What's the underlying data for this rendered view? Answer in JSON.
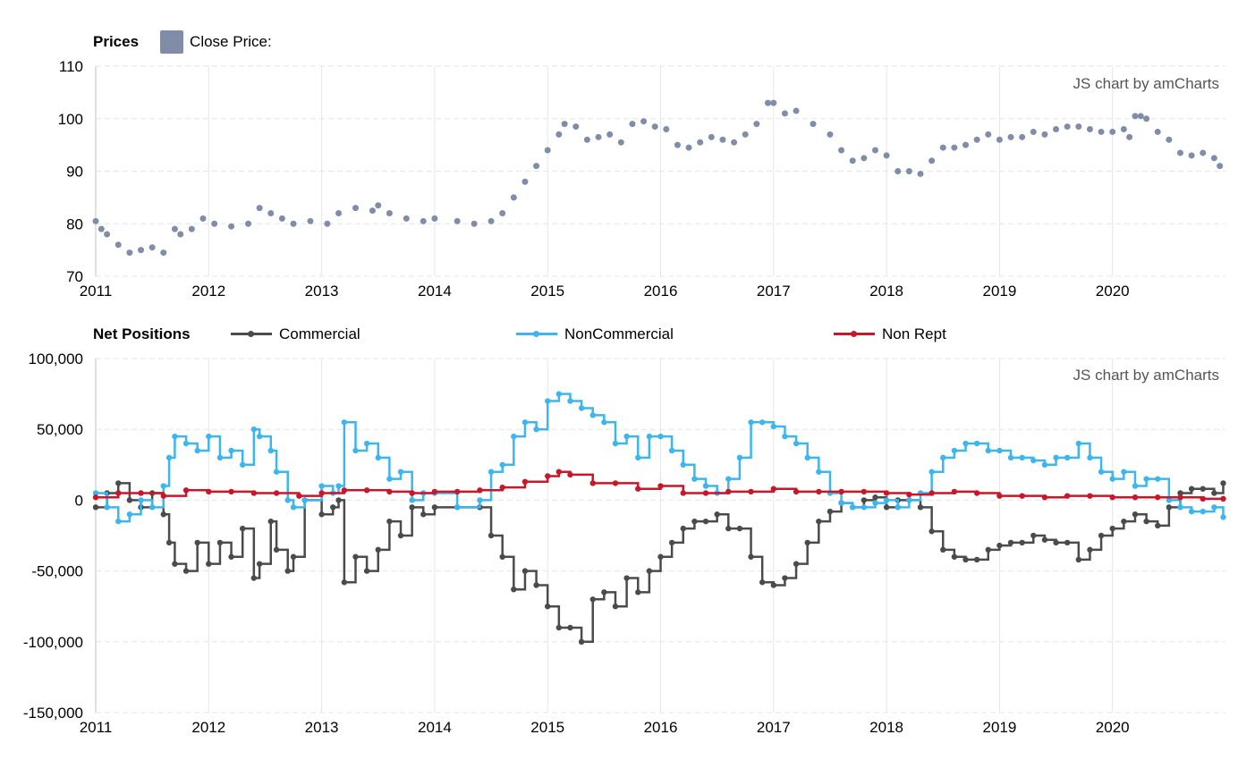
{
  "watermark": "JS chart by amCharts",
  "colors": {
    "close": "#7f8da9",
    "close_alt": "#e05a57",
    "commercial": "#4b4b4b",
    "noncommercial": "#3cb6ee",
    "nonrept": "#c8172a",
    "grid": "#e6e6e6"
  },
  "prices_legend": {
    "title": "Prices",
    "item": "Close Price:"
  },
  "positions_legend": {
    "title": "Net Positions",
    "items": [
      {
        "label": "Commercial",
        "color_key": "commercial"
      },
      {
        "label": "NonCommercial",
        "color_key": "noncommercial"
      },
      {
        "label": "Non Rept",
        "color_key": "nonrept"
      }
    ]
  },
  "chart_data": [
    {
      "type": "scatter",
      "title": "Prices",
      "series": [
        {
          "name": "Close Price:",
          "x": [
            2011.0,
            2011.05,
            2011.1,
            2011.2,
            2011.3,
            2011.4,
            2011.5,
            2011.6,
            2011.7,
            2011.75,
            2011.85,
            2011.95,
            2012.05,
            2012.2,
            2012.35,
            2012.45,
            2012.55,
            2012.65,
            2012.75,
            2012.9,
            2013.05,
            2013.15,
            2013.3,
            2013.45,
            2013.5,
            2013.6,
            2013.75,
            2013.9,
            2014.0,
            2014.2,
            2014.35,
            2014.5,
            2014.6,
            2014.7,
            2014.8,
            2014.9,
            2015.0,
            2015.1,
            2015.15,
            2015.25,
            2015.35,
            2015.45,
            2015.55,
            2015.65,
            2015.75,
            2015.85,
            2015.95,
            2016.05,
            2016.15,
            2016.25,
            2016.35,
            2016.45,
            2016.55,
            2016.65,
            2016.75,
            2016.85,
            2016.95,
            2017.0,
            2017.1,
            2017.2,
            2017.35,
            2017.5,
            2017.6,
            2017.7,
            2017.8,
            2017.9,
            2018.0,
            2018.1,
            2018.2,
            2018.3,
            2018.4,
            2018.5,
            2018.6,
            2018.7,
            2018.8,
            2018.9,
            2019.0,
            2019.1,
            2019.2,
            2019.3,
            2019.4,
            2019.5,
            2019.6,
            2019.7,
            2019.8,
            2019.9,
            2020.0,
            2020.1,
            2020.15,
            2020.2,
            2020.25,
            2020.3,
            2020.4,
            2020.5,
            2020.6,
            2020.7,
            2020.8,
            2020.9,
            2020.95
          ],
          "y": [
            80.5,
            79,
            78,
            76,
            74.5,
            75,
            75.5,
            74.5,
            79,
            78,
            79,
            81,
            80,
            79.5,
            80,
            83,
            82,
            81,
            80,
            80.5,
            80,
            82,
            83,
            82.5,
            83.5,
            82,
            81,
            80.5,
            81,
            80.5,
            80,
            80.5,
            82,
            85,
            88,
            91,
            94,
            97,
            99,
            98.5,
            96,
            96.5,
            97,
            95.5,
            99,
            99.5,
            98.5,
            98,
            95,
            94.5,
            95.5,
            96.5,
            96,
            95.5,
            97,
            99,
            103,
            103,
            101,
            101.5,
            99,
            97,
            94,
            92,
            92.5,
            94,
            93,
            90,
            90,
            89.5,
            92,
            94.5,
            94.5,
            95,
            96,
            97,
            96,
            96.5,
            96.5,
            97.5,
            97,
            98,
            98.5,
            98.5,
            98,
            97.5,
            97.5,
            98,
            96.5,
            100.5,
            100.5,
            100,
            97.5,
            96,
            93.5,
            93,
            93.5,
            92.5,
            91
          ]
        }
      ],
      "xlim": [
        2011,
        2021
      ],
      "ylim": [
        70,
        110
      ],
      "x_ticks": [
        "2011",
        "2012",
        "2013",
        "2014",
        "2015",
        "2016",
        "2017",
        "2018",
        "2019",
        "2020"
      ],
      "y_ticks": [
        "70",
        "80",
        "90",
        "100",
        "110"
      ],
      "legend": "top-left",
      "grid": true
    },
    {
      "type": "line",
      "title": "Net Positions",
      "series": [
        {
          "name": "Commercial",
          "x": [
            2011.0,
            2011.1,
            2011.2,
            2011.3,
            2011.4,
            2011.5,
            2011.6,
            2011.65,
            2011.7,
            2011.8,
            2011.9,
            2012.0,
            2012.1,
            2012.2,
            2012.3,
            2012.4,
            2012.45,
            2012.55,
            2012.6,
            2012.7,
            2012.75,
            2012.85,
            2013.0,
            2013.1,
            2013.15,
            2013.2,
            2013.3,
            2013.4,
            2013.5,
            2013.6,
            2013.7,
            2013.8,
            2013.9,
            2014.0,
            2014.2,
            2014.4,
            2014.5,
            2014.6,
            2014.7,
            2014.8,
            2014.9,
            2015.0,
            2015.1,
            2015.2,
            2015.3,
            2015.4,
            2015.5,
            2015.6,
            2015.7,
            2015.8,
            2015.9,
            2016.0,
            2016.1,
            2016.2,
            2016.3,
            2016.4,
            2016.5,
            2016.6,
            2016.7,
            2016.8,
            2016.9,
            2017.0,
            2017.1,
            2017.2,
            2017.3,
            2017.4,
            2017.5,
            2017.6,
            2017.7,
            2017.8,
            2017.9,
            2018.0,
            2018.1,
            2018.2,
            2018.3,
            2018.4,
            2018.5,
            2018.6,
            2018.7,
            2018.8,
            2018.9,
            2019.0,
            2019.1,
            2019.2,
            2019.3,
            2019.4,
            2019.5,
            2019.6,
            2019.7,
            2019.8,
            2019.9,
            2020.0,
            2020.1,
            2020.2,
            2020.3,
            2020.4,
            2020.5,
            2020.6,
            2020.7,
            2020.8,
            2020.9,
            2020.98
          ],
          "y": [
            -5000,
            5000,
            12000,
            0,
            -5000,
            5000,
            -10000,
            -30000,
            -45000,
            -50000,
            -30000,
            -45000,
            -30000,
            -40000,
            -20000,
            -55000,
            -45000,
            -15000,
            -35000,
            -50000,
            -40000,
            0,
            -10000,
            -5000,
            0,
            -58000,
            -40000,
            -50000,
            -35000,
            -15000,
            -25000,
            -5000,
            -10000,
            -5000,
            -5000,
            -5000,
            -25000,
            -40000,
            -63000,
            -50000,
            -60000,
            -75000,
            -90000,
            -90000,
            -100000,
            -70000,
            -65000,
            -75000,
            -55000,
            -65000,
            -50000,
            -40000,
            -30000,
            -20000,
            -15000,
            -15000,
            -10000,
            -20000,
            -20000,
            -40000,
            -58000,
            -60000,
            -55000,
            -45000,
            -30000,
            -15000,
            -8000,
            -2000,
            -5000,
            0,
            2000,
            -5000,
            0,
            0,
            -5000,
            -22000,
            -35000,
            -40000,
            -42000,
            -42000,
            -35000,
            -32000,
            -30000,
            -30000,
            -25000,
            -28000,
            -30000,
            -30000,
            -42000,
            -35000,
            -25000,
            -20000,
            -15000,
            -10000,
            -15000,
            -18000,
            -5000,
            5000,
            8000,
            8000,
            5000,
            12000
          ]
        },
        {
          "name": "NonCommercial",
          "x": [
            2011.0,
            2011.1,
            2011.2,
            2011.3,
            2011.4,
            2011.5,
            2011.6,
            2011.65,
            2011.7,
            2011.8,
            2011.9,
            2012.0,
            2012.1,
            2012.2,
            2012.3,
            2012.4,
            2012.45,
            2012.55,
            2012.6,
            2012.7,
            2012.75,
            2012.85,
            2013.0,
            2013.1,
            2013.15,
            2013.2,
            2013.3,
            2013.4,
            2013.5,
            2013.6,
            2013.7,
            2013.8,
            2013.9,
            2014.0,
            2014.2,
            2014.4,
            2014.5,
            2014.6,
            2014.7,
            2014.8,
            2014.9,
            2015.0,
            2015.1,
            2015.2,
            2015.3,
            2015.4,
            2015.5,
            2015.6,
            2015.7,
            2015.8,
            2015.9,
            2016.0,
            2016.1,
            2016.2,
            2016.3,
            2016.4,
            2016.5,
            2016.6,
            2016.7,
            2016.8,
            2016.9,
            2017.0,
            2017.1,
            2017.2,
            2017.3,
            2017.4,
            2017.5,
            2017.6,
            2017.7,
            2017.8,
            2017.9,
            2018.0,
            2018.1,
            2018.2,
            2018.3,
            2018.4,
            2018.5,
            2018.6,
            2018.7,
            2018.8,
            2018.9,
            2019.0,
            2019.1,
            2019.2,
            2019.3,
            2019.4,
            2019.5,
            2019.6,
            2019.7,
            2019.8,
            2019.9,
            2020.0,
            2020.1,
            2020.2,
            2020.3,
            2020.4,
            2020.5,
            2020.6,
            2020.7,
            2020.8,
            2020.9,
            2020.98
          ],
          "y": [
            5000,
            -5000,
            -15000,
            -10000,
            0,
            -5000,
            10000,
            30000,
            45000,
            40000,
            35000,
            45000,
            30000,
            35000,
            25000,
            50000,
            45000,
            35000,
            20000,
            0,
            -5000,
            0,
            10000,
            5000,
            10000,
            55000,
            35000,
            40000,
            30000,
            15000,
            20000,
            0,
            5000,
            5000,
            -5000,
            0,
            20000,
            25000,
            45000,
            55000,
            50000,
            70000,
            75000,
            70000,
            65000,
            60000,
            55000,
            40000,
            45000,
            30000,
            45000,
            45000,
            35000,
            25000,
            15000,
            10000,
            5000,
            15000,
            30000,
            55000,
            55000,
            52000,
            45000,
            40000,
            30000,
            20000,
            5000,
            -2000,
            -5000,
            -5000,
            -2000,
            0,
            -5000,
            0,
            5000,
            20000,
            30000,
            35000,
            40000,
            40000,
            35000,
            35000,
            30000,
            30000,
            28000,
            25000,
            30000,
            30000,
            40000,
            30000,
            20000,
            15000,
            20000,
            10000,
            15000,
            15000,
            0,
            -5000,
            -8000,
            -8000,
            -5000,
            -12000
          ]
        },
        {
          "name": "Non Rept",
          "x": [
            2011.0,
            2011.2,
            2011.4,
            2011.6,
            2011.8,
            2012.0,
            2012.2,
            2012.4,
            2012.6,
            2012.8,
            2013.0,
            2013.2,
            2013.4,
            2013.6,
            2013.8,
            2014.0,
            2014.2,
            2014.4,
            2014.6,
            2014.8,
            2015.0,
            2015.1,
            2015.2,
            2015.4,
            2015.6,
            2015.8,
            2016.0,
            2016.2,
            2016.4,
            2016.6,
            2016.8,
            2017.0,
            2017.2,
            2017.4,
            2017.6,
            2017.8,
            2018.0,
            2018.2,
            2018.4,
            2018.6,
            2018.8,
            2019.0,
            2019.2,
            2019.4,
            2019.6,
            2019.8,
            2020.0,
            2020.2,
            2020.4,
            2020.6,
            2020.8,
            2020.98
          ],
          "y": [
            2000,
            5000,
            5000,
            3000,
            7000,
            6000,
            6000,
            5000,
            5000,
            3000,
            5000,
            7000,
            7000,
            6000,
            5000,
            6000,
            6000,
            7000,
            9000,
            13000,
            17000,
            20000,
            18000,
            12000,
            12000,
            8000,
            10000,
            5000,
            5000,
            6000,
            6000,
            8000,
            6000,
            6000,
            6000,
            6000,
            5000,
            4000,
            5000,
            6000,
            5000,
            3000,
            3000,
            2000,
            3000,
            3000,
            2000,
            2000,
            2000,
            2000,
            1000,
            1000
          ]
        }
      ],
      "xlim": [
        2011,
        2021
      ],
      "ylim": [
        -150000,
        100000
      ],
      "x_ticks": [
        "2011",
        "2012",
        "2013",
        "2014",
        "2015",
        "2016",
        "2017",
        "2018",
        "2019",
        "2020"
      ],
      "y_ticks": [
        "-150,000",
        "-100,000",
        "-50,000",
        "0",
        "50,000",
        "100,000"
      ],
      "legend": "top-left",
      "grid": true
    }
  ]
}
